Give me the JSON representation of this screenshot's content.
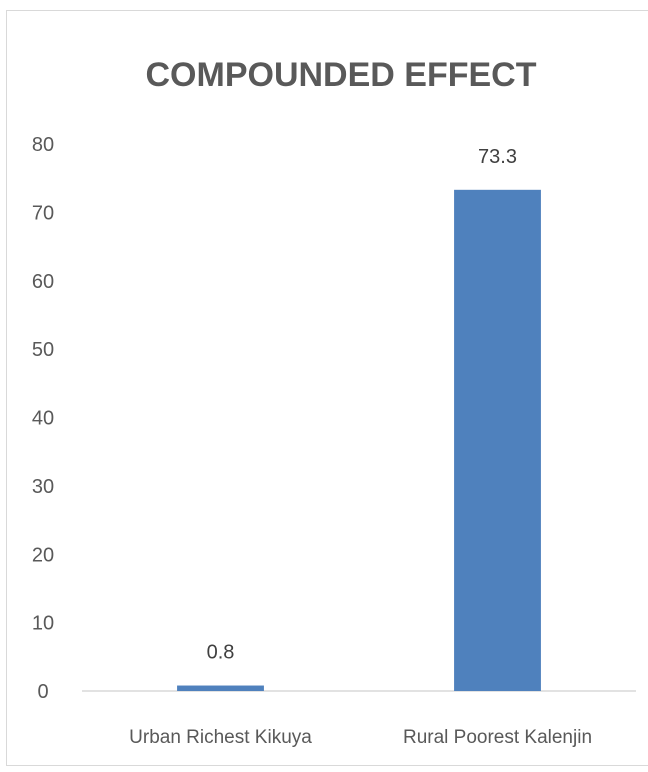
{
  "chart_data": {
    "type": "bar",
    "title": "COMPOUNDED EFFECT",
    "categories": [
      "Urban Richest Kikuya",
      "Rural Poorest Kalenjin"
    ],
    "values": [
      0.8,
      73.3
    ],
    "value_labels": [
      "0.8",
      "73.3"
    ],
    "y_ticks": [
      0,
      10,
      20,
      30,
      40,
      50,
      60,
      70,
      80
    ],
    "ylim": [
      0,
      80
    ],
    "xlabel": "",
    "ylabel": "",
    "grid": false,
    "bar_color": "#4f81bd",
    "axis_color": "#d9d9d9"
  }
}
